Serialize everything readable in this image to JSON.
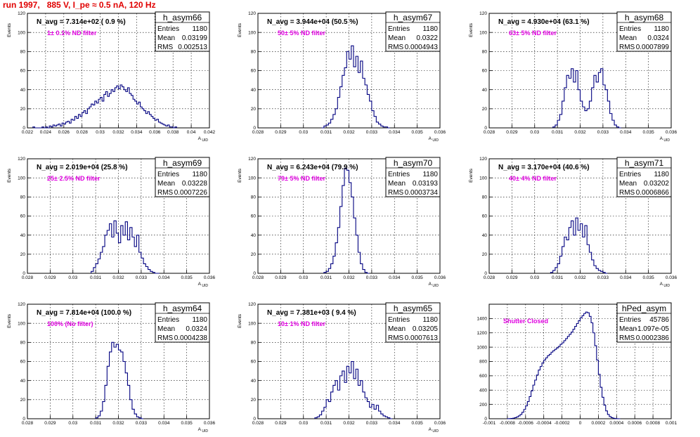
{
  "header": {
    "run_title": "run 1997,   885 V, I_pe ≈ 0.5 nA, 120 Hz"
  },
  "chart_data": [
    {
      "type": "bar",
      "title": "h_asym66",
      "xlabel": "A_UID",
      "ylabel": "Events",
      "xlim": [
        0.022,
        0.042
      ],
      "ylim": [
        0,
        120
      ],
      "xticks": [
        0.022,
        0.024,
        0.026,
        0.028,
        0.03,
        0.032,
        0.034,
        0.036,
        0.038,
        0.04,
        0.042
      ],
      "xticklabels": [
        "0.022",
        "0.024",
        "0.026",
        "0.028",
        "0.03",
        "0.032",
        "0.034",
        "0.036",
        "0.038",
        "0.04",
        "0.042"
      ],
      "yticks": [
        0,
        20,
        40,
        60,
        80,
        100,
        120
      ],
      "annotation": "N_avg = 7.314e+02 ( 0.9 %)",
      "filter_label": "1± 0.1% ND filter",
      "filter_color": "#e000e0",
      "stats": {
        "entries": "1180",
        "mean": "0.03199",
        "rms": "0.002513"
      },
      "bins": {
        "x0": 0.0226,
        "width": 0.0002,
        "counts": [
          1,
          0,
          0,
          0,
          0,
          1,
          0,
          1,
          0,
          2,
          1,
          3,
          2,
          3,
          4,
          2,
          5,
          4,
          6,
          7,
          5,
          9,
          8,
          12,
          10,
          14,
          12,
          16,
          18,
          15,
          20,
          22,
          25,
          24,
          28,
          26,
          30,
          32,
          28,
          35,
          38,
          33,
          36,
          40,
          38,
          42,
          44,
          41,
          45,
          43,
          40,
          38,
          42,
          36,
          34,
          30,
          28,
          25,
          27,
          22,
          20,
          18,
          15,
          17,
          14,
          12,
          10,
          8,
          9,
          6,
          5,
          4,
          3,
          2,
          3,
          1,
          1,
          0,
          1
        ]
      }
    },
    {
      "type": "bar",
      "title": "h_asym67",
      "xlabel": "A_UID",
      "ylabel": "Events",
      "xlim": [
        0.028,
        0.036
      ],
      "ylim": [
        0,
        120
      ],
      "xticks": [
        0.028,
        0.029,
        0.03,
        0.031,
        0.032,
        0.033,
        0.034,
        0.035,
        0.036
      ],
      "xticklabels": [
        "0.028",
        "0.029",
        "0.03",
        "0.031",
        "0.032",
        "0.033",
        "0.034",
        "0.035",
        "0.036"
      ],
      "yticks": [
        0,
        20,
        40,
        60,
        80,
        100,
        120
      ],
      "annotation": "N_avg = 3.944e+04 (50.5 %)",
      "filter_label": "50± 5% ND filter",
      "filter_color": "#e000e0",
      "stats": {
        "entries": "1180",
        "mean": "0.0322",
        "rms": "0.0004943"
      },
      "bins": {
        "x0": 0.0308,
        "width": 0.0001,
        "counts": [
          0,
          2,
          3,
          5,
          9,
          14,
          20,
          32,
          43,
          55,
          63,
          80,
          72,
          86,
          64,
          75,
          58,
          70,
          52,
          45,
          35,
          28,
          18,
          12,
          6,
          4,
          2,
          1,
          1,
          0
        ]
      }
    },
    {
      "type": "bar",
      "title": "h_asym68",
      "xlabel": "A_UID",
      "ylabel": "Events",
      "xlim": [
        0.028,
        0.036
      ],
      "ylim": [
        0,
        120
      ],
      "xticks": [
        0.028,
        0.029,
        0.03,
        0.031,
        0.032,
        0.033,
        0.034,
        0.035,
        0.036
      ],
      "xticklabels": [
        "0.028",
        "0.029",
        "0.03",
        "0.031",
        "0.032",
        "0.033",
        "0.034",
        "0.035",
        "0.036"
      ],
      "yticks": [
        0,
        20,
        40,
        60,
        80,
        100,
        120
      ],
      "annotation": "N_avg = 4.930e+04 (63.1 %)",
      "filter_label": "63± 5% ND filter",
      "filter_color": "#e000e0",
      "stats": {
        "entries": "1180",
        "mean": "0.0324",
        "rms": "0.0007899"
      },
      "bins": {
        "x0": 0.0308,
        "width": 0.0001,
        "counts": [
          1,
          3,
          8,
          14,
          28,
          42,
          55,
          52,
          62,
          48,
          60,
          40,
          28,
          22,
          18,
          20,
          28,
          42,
          55,
          48,
          58,
          62,
          45,
          40,
          28,
          15,
          8,
          3,
          1,
          0
        ]
      }
    },
    {
      "type": "bar",
      "title": "h_asym69",
      "xlabel": "A_UID",
      "ylabel": "Events",
      "xlim": [
        0.028,
        0.036
      ],
      "ylim": [
        0,
        120
      ],
      "xticks": [
        0.028,
        0.029,
        0.03,
        0.031,
        0.032,
        0.033,
        0.034,
        0.035,
        0.036
      ],
      "xticklabels": [
        "0.028",
        "0.029",
        "0.03",
        "0.031",
        "0.032",
        "0.033",
        "0.034",
        "0.035",
        "0.036"
      ],
      "yticks": [
        0,
        20,
        40,
        60,
        80,
        100,
        120
      ],
      "annotation": "N_avg = 2.019e+04 (25.8 %)",
      "filter_label": "25± 2.5% ND filter",
      "filter_color": "#e000e0",
      "stats": {
        "entries": "1180",
        "mean": "0.03228",
        "rms": "0.0007226"
      },
      "bins": {
        "x0": 0.0308,
        "width": 0.0001,
        "counts": [
          2,
          6,
          10,
          15,
          22,
          28,
          40,
          45,
          52,
          38,
          55,
          42,
          32,
          50,
          40,
          54,
          35,
          48,
          38,
          28,
          40,
          22,
          16,
          10,
          7,
          4,
          2,
          1,
          0,
          0
        ]
      }
    },
    {
      "type": "bar",
      "title": "h_asym70",
      "xlabel": "A_UID",
      "ylabel": "Events",
      "xlim": [
        0.028,
        0.036
      ],
      "ylim": [
        0,
        120
      ],
      "xticks": [
        0.028,
        0.029,
        0.03,
        0.031,
        0.032,
        0.033,
        0.034,
        0.035,
        0.036
      ],
      "xticklabels": [
        "0.028",
        "0.029",
        "0.03",
        "0.031",
        "0.032",
        "0.033",
        "0.034",
        "0.035",
        "0.036"
      ],
      "yticks": [
        0,
        20,
        40,
        60,
        80,
        100,
        120
      ],
      "annotation": "N_avg = 6.243e+04 (79.9 %)",
      "filter_label": "79± 5% ND filter",
      "filter_color": "#e000e0",
      "stats": {
        "entries": "1180",
        "mean": "0.03193",
        "rms": "0.0003734"
      },
      "bins": {
        "x0": 0.0309,
        "width": 0.0001,
        "counts": [
          1,
          2,
          5,
          10,
          18,
          32,
          48,
          70,
          92,
          110,
          108,
          95,
          80,
          58,
          40,
          22,
          10,
          4,
          1,
          0
        ]
      }
    },
    {
      "type": "bar",
      "title": "h_asym71",
      "xlabel": "A_UID",
      "ylabel": "Events",
      "xlim": [
        0.028,
        0.036
      ],
      "ylim": [
        0,
        120
      ],
      "xticks": [
        0.028,
        0.029,
        0.03,
        0.031,
        0.032,
        0.033,
        0.034,
        0.035,
        0.036
      ],
      "xticklabels": [
        "0.028",
        "0.029",
        "0.03",
        "0.031",
        "0.032",
        "0.033",
        "0.034",
        "0.035",
        "0.036"
      ],
      "yticks": [
        0,
        20,
        40,
        60,
        80,
        100,
        120
      ],
      "annotation": "N_avg = 3.170e+04 (40.6 %)",
      "filter_label": "40± 4% ND filter",
      "filter_color": "#e000e0",
      "stats": {
        "entries": "1180",
        "mean": "0.03202",
        "rms": "0.0006866"
      },
      "bins": {
        "x0": 0.0307,
        "width": 0.0001,
        "counts": [
          1,
          3,
          6,
          10,
          18,
          28,
          38,
          35,
          48,
          55,
          40,
          58,
          45,
          52,
          38,
          50,
          30,
          22,
          14,
          8,
          5,
          3,
          2,
          1,
          0
        ]
      }
    },
    {
      "type": "bar",
      "title": "h_asym64",
      "xlabel": "A_UID",
      "ylabel": "Events",
      "xlim": [
        0.028,
        0.036
      ],
      "ylim": [
        0,
        120
      ],
      "xticks": [
        0.028,
        0.029,
        0.03,
        0.031,
        0.032,
        0.033,
        0.034,
        0.035,
        0.036
      ],
      "xticklabels": [
        "0.028",
        "0.029",
        "0.03",
        "0.031",
        "0.032",
        "0.033",
        "0.034",
        "0.035",
        "0.036"
      ],
      "yticks": [
        0,
        20,
        40,
        60,
        80,
        100,
        120
      ],
      "annotation": "N_avg = 7.814e+04 (100.0 %)",
      "filter_label": "100% (No filter)",
      "filter_color": "#e000e0",
      "stats": {
        "entries": "1180",
        "mean": "0.0324",
        "rms": "0.0004238"
      },
      "bins": {
        "x0": 0.031,
        "width": 0.0001,
        "counts": [
          1,
          3,
          8,
          18,
          35,
          55,
          70,
          80,
          75,
          78,
          72,
          70,
          60,
          48,
          35,
          20,
          10,
          5,
          2,
          1,
          0
        ]
      }
    },
    {
      "type": "bar",
      "title": "h_asym65",
      "xlabel": "A_UID",
      "ylabel": "Events",
      "xlim": [
        0.028,
        0.036
      ],
      "ylim": [
        0,
        120
      ],
      "xticks": [
        0.028,
        0.029,
        0.03,
        0.031,
        0.032,
        0.033,
        0.034,
        0.035,
        0.036
      ],
      "xticklabels": [
        "0.028",
        "0.029",
        "0.03",
        "0.031",
        "0.032",
        "0.033",
        "0.034",
        "0.035",
        "0.036"
      ],
      "yticks": [
        0,
        20,
        40,
        60,
        80,
        100,
        120
      ],
      "annotation": "N_avg = 7.381e+03 ( 9.4 %)",
      "filter_label": "10± 1% ND filter",
      "filter_color": "#e000e0",
      "stats": {
        "entries": "1180",
        "mean": "0.03205",
        "rms": "0.0007613"
      },
      "bins": {
        "x0": 0.0305,
        "width": 0.0001,
        "counts": [
          1,
          2,
          4,
          8,
          12,
          20,
          18,
          28,
          35,
          40,
          30,
          45,
          50,
          38,
          55,
          48,
          60,
          42,
          52,
          35,
          40,
          28,
          22,
          18,
          12,
          15,
          10,
          14,
          8,
          5,
          3,
          2,
          1,
          0
        ]
      }
    },
    {
      "type": "bar",
      "title": "hPed_asym",
      "xlabel": "",
      "ylabel": "",
      "xlim": [
        -0.001,
        0.001
      ],
      "ylim": [
        0,
        1600
      ],
      "xticks": [
        -0.001,
        -0.0008,
        -0.0006,
        -0.0004,
        -0.0002,
        0,
        0.0002,
        0.0004,
        0.0006,
        0.0008,
        0.001
      ],
      "xticklabels": [
        "-0.001",
        "-0.0008",
        "-0.0006",
        "-0.0004",
        "-0.0002",
        "0",
        "0.0002",
        "0.0004",
        "0.0006",
        "0.0008",
        "0.001"
      ],
      "yticks": [
        0,
        200,
        400,
        600,
        800,
        1000,
        1200,
        1400
      ],
      "annotation": "",
      "filter_label": "Shutter Closed",
      "filter_color": "#e000e0",
      "stats": {
        "entries": "45786",
        "mean": "-1.097e-05",
        "rms": "0.0002386"
      },
      "bins": {
        "x0": -0.0008,
        "width": 2e-05,
        "counts": [
          1,
          2,
          4,
          8,
          15,
          25,
          40,
          60,
          90,
          130,
          180,
          240,
          310,
          390,
          470,
          540,
          610,
          680,
          730,
          780,
          820,
          850,
          880,
          900,
          930,
          950,
          970,
          990,
          1010,
          1040,
          1060,
          1090,
          1120,
          1150,
          1180,
          1210,
          1250,
          1290,
          1330,
          1370,
          1410,
          1440,
          1470,
          1490,
          1480,
          1430,
          1340,
          1200,
          1020,
          820,
          620,
          440,
          300,
          190,
          110,
          60,
          30,
          15,
          7,
          3,
          1,
          0
        ]
      }
    }
  ]
}
